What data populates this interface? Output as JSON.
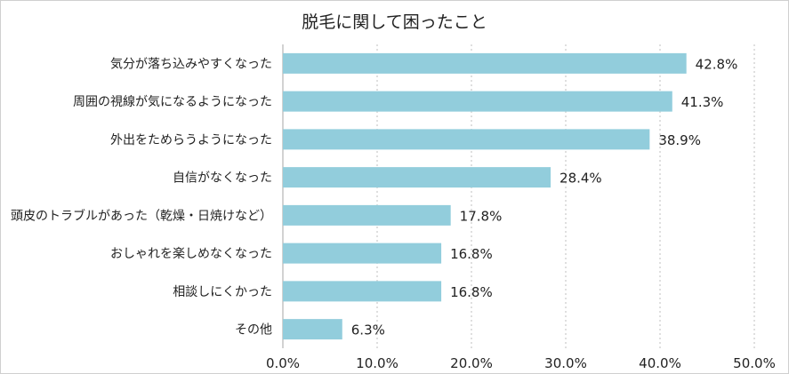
{
  "chart_data": {
    "type": "bar",
    "orientation": "horizontal",
    "title": "脱毛に関して困ったこと",
    "categories": [
      "気分が落ち込みやすくなった",
      "周囲の視線が気になるようになった",
      "外出をためらうようになった",
      "自信がなくなった",
      "頭皮のトラブルがあった（乾燥・日焼けなど）",
      "おしゃれを楽しめなくなった",
      "相談しにくかった",
      "その他"
    ],
    "values": [
      42.8,
      41.3,
      38.9,
      28.4,
      17.8,
      16.8,
      16.8,
      6.3
    ],
    "value_labels": [
      "42.8%",
      "41.3%",
      "38.9%",
      "28.4%",
      "17.8%",
      "16.8%",
      "16.8%",
      "6.3%"
    ],
    "xlim": [
      0,
      50
    ],
    "xticks": [
      0,
      10,
      20,
      30,
      40,
      50
    ],
    "xtick_labels": [
      "0.0%",
      "10.0%",
      "20.0%",
      "30.0%",
      "40.0%",
      "50.0%"
    ],
    "grid": "vertical dotted",
    "bar_color": "#92CDDC",
    "grid_color": "#BFBFBF",
    "axis_color": "#A6A6A6"
  }
}
